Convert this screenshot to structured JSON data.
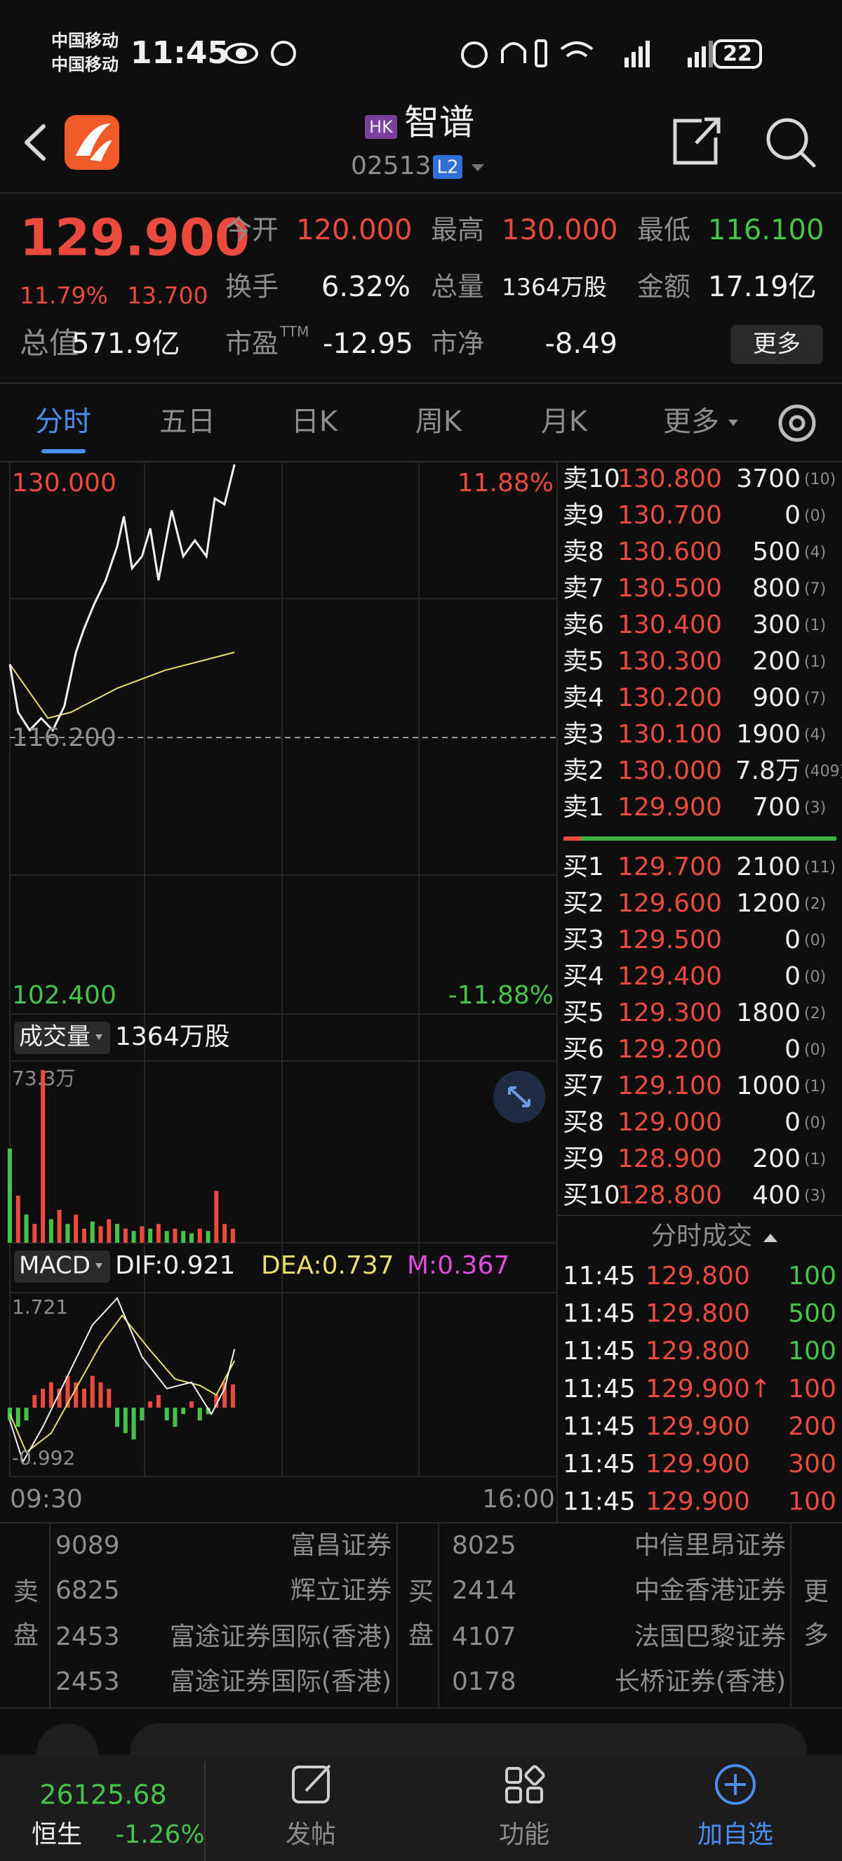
{
  "status_bar": {
    "carrier1": "中国移动",
    "carrier2": "中国移动",
    "time": "11:45",
    "battery": "22"
  },
  "header": {
    "market": "HK",
    "name": "智谱",
    "code": "02513",
    "level": "L2"
  },
  "quote": {
    "price": "129.900",
    "change_pct": "11.79%",
    "change": "13.700",
    "stats": [
      {
        "label": "今开",
        "value": "120.000"
      },
      {
        "label": "最高",
        "value": "130.000"
      },
      {
        "label": "最低",
        "value": "116.100"
      },
      {
        "label": "换手",
        "value": "6.32%"
      },
      {
        "label": "总量",
        "value": "1364万股"
      },
      {
        "label": "金额",
        "value": "17.19亿"
      },
      {
        "label": "总值",
        "value": "571.9亿"
      },
      {
        "label": "市盈",
        "sup": "TTM",
        "value": "-12.95"
      },
      {
        "label": "市净",
        "value": "-8.49"
      }
    ],
    "more": "更多"
  },
  "tabs": [
    "分时",
    "五日",
    "日K",
    "周K",
    "月K",
    "更多"
  ],
  "intraday": {
    "top_label": "130.000",
    "top_pct": "11.88%",
    "mid_label": "116.200",
    "bottom_label": "102.400",
    "bottom_pct": "-11.88%",
    "xlim": [
      0,
      330
    ],
    "ylim": [
      102.4,
      130
    ],
    "x": [
      0,
      5,
      12,
      19,
      26,
      33,
      40,
      45,
      51,
      58,
      65,
      69,
      74,
      80,
      85,
      90,
      98,
      105,
      112,
      119,
      124,
      130,
      136
    ],
    "price": [
      119.9,
      117.5,
      116.6,
      117.2,
      116.6,
      117.8,
      120.5,
      121.7,
      122.9,
      124.1,
      125.8,
      127.3,
      124.7,
      125.3,
      126.7,
      124.1,
      127.6,
      125.3,
      126.1,
      125.3,
      128.2,
      127.9,
      129.9
    ],
    "avg_x": [
      0,
      23,
      37,
      65,
      94,
      122,
      136
    ],
    "avg": [
      119.9,
      117.2,
      117.5,
      118.7,
      119.6,
      120.2,
      120.5
    ],
    "times": [
      "09:30",
      "16:00"
    ]
  },
  "volume": {
    "label": "成交量",
    "total": "1364万股",
    "max_label": "73.3万",
    "ylim": [
      0,
      73.3
    ],
    "x": [
      0,
      5,
      10,
      15,
      20,
      25,
      30,
      35,
      40,
      45,
      50,
      55,
      60,
      65,
      70,
      75,
      80,
      85,
      90,
      95,
      100,
      105,
      110,
      115,
      120,
      125,
      130,
      135
    ],
    "values": [
      40,
      20,
      12,
      8,
      73.3,
      10,
      14,
      8,
      12,
      6,
      9,
      7,
      10,
      8,
      6,
      5,
      7,
      6,
      8,
      5,
      6,
      5,
      4,
      6,
      5,
      22,
      8,
      6
    ],
    "colors": [
      "#46c44a",
      "#ec4a3f",
      "#46c44a",
      "#ec4a3f",
      "#ec4a3f",
      "#46c44a",
      "#ec4a3f",
      "#46c44a",
      "#ec4a3f",
      "#ec4a3f",
      "#46c44a",
      "#ec4a3f",
      "#ec4a3f",
      "#46c44a",
      "#ec4a3f",
      "#46c44a",
      "#ec4a3f",
      "#46c44a",
      "#ec4a3f",
      "#46c44a",
      "#ec4a3f",
      "#46c44a",
      "#46c44a",
      "#ec4a3f",
      "#46c44a",
      "#ec4a3f",
      "#ec4a3f",
      "#ec4a3f"
    ]
  },
  "macd": {
    "label": "MACD",
    "dif_label": "DIF:0.921",
    "dea_label": "DEA:0.737",
    "m_label": "M:0.367",
    "max_label": "1.721",
    "min_label": "-0.992",
    "ylim": [
      -0.992,
      1.721
    ],
    "dif_x": [
      0,
      8,
      20,
      35,
      50,
      65,
      80,
      95,
      110,
      122,
      130,
      136
    ],
    "dif": [
      -0.2,
      -0.85,
      -0.3,
      0.5,
      1.3,
      1.72,
      0.8,
      0.3,
      0.4,
      -0.1,
      0.3,
      0.921
    ],
    "dea_x": [
      0,
      10,
      25,
      40,
      55,
      68,
      85,
      100,
      115,
      125,
      136
    ],
    "dea": [
      -0.1,
      -0.7,
      -0.4,
      0.3,
      1.0,
      1.45,
      0.9,
      0.45,
      0.35,
      0.2,
      0.737
    ],
    "m_x": [
      0,
      5,
      10,
      15,
      20,
      25,
      30,
      35,
      40,
      45,
      50,
      55,
      60,
      65,
      70,
      75,
      80,
      85,
      90,
      95,
      100,
      105,
      110,
      115,
      120,
      125,
      130,
      135
    ],
    "m": [
      -0.2,
      -0.3,
      -0.2,
      0.2,
      0.3,
      0.4,
      0.3,
      0.5,
      0.4,
      0.3,
      0.5,
      0.4,
      0.3,
      -0.3,
      -0.4,
      -0.5,
      -0.2,
      0.1,
      0.2,
      -0.2,
      -0.3,
      -0.1,
      0.1,
      -0.2,
      -0.1,
      0.2,
      0.4,
      0.367
    ]
  },
  "order_book": {
    "asks": [
      {
        "label": "卖10",
        "price": "130.800",
        "qty": "3700",
        "count": "(10)"
      },
      {
        "label": "卖9",
        "price": "130.700",
        "qty": "0",
        "count": "(0)"
      },
      {
        "label": "卖8",
        "price": "130.600",
        "qty": "500",
        "count": "(4)"
      },
      {
        "label": "卖7",
        "price": "130.500",
        "qty": "800",
        "count": "(7)"
      },
      {
        "label": "卖6",
        "price": "130.400",
        "qty": "300",
        "count": "(1)"
      },
      {
        "label": "卖5",
        "price": "130.300",
        "qty": "200",
        "count": "(1)"
      },
      {
        "label": "卖4",
        "price": "130.200",
        "qty": "900",
        "count": "(7)"
      },
      {
        "label": "卖3",
        "price": "130.100",
        "qty": "1900",
        "count": "(4)"
      },
      {
        "label": "卖2",
        "price": "130.000",
        "qty": "7.8万",
        "count": "(409)"
      },
      {
        "label": "卖1",
        "price": "129.900",
        "qty": "700",
        "count": "(3)"
      }
    ],
    "bids": [
      {
        "label": "买1",
        "price": "129.700",
        "qty": "2100",
        "count": "(11)"
      },
      {
        "label": "买2",
        "price": "129.600",
        "qty": "1200",
        "count": "(2)"
      },
      {
        "label": "买3",
        "price": "129.500",
        "qty": "0",
        "count": "(0)"
      },
      {
        "label": "买4",
        "price": "129.400",
        "qty": "0",
        "count": "(0)"
      },
      {
        "label": "买5",
        "price": "129.300",
        "qty": "1800",
        "count": "(2)"
      },
      {
        "label": "买6",
        "price": "129.200",
        "qty": "0",
        "count": "(0)"
      },
      {
        "label": "买7",
        "price": "129.100",
        "qty": "1000",
        "count": "(1)"
      },
      {
        "label": "买8",
        "price": "129.000",
        "qty": "0",
        "count": "(0)"
      },
      {
        "label": "买9",
        "price": "128.900",
        "qty": "200",
        "count": "(1)"
      },
      {
        "label": "买10",
        "price": "128.800",
        "qty": "400",
        "count": "(3)"
      }
    ]
  },
  "trades": {
    "title": "分时成交",
    "rows": [
      {
        "time": "11:45",
        "price": "129.800",
        "qty": "100",
        "color": "#46c44a"
      },
      {
        "time": "11:45",
        "price": "129.800",
        "qty": "500",
        "color": "#46c44a"
      },
      {
        "time": "11:45",
        "price": "129.800",
        "qty": "100",
        "color": "#46c44a"
      },
      {
        "time": "11:45",
        "price": "129.900↑",
        "qty": "100",
        "color": "#ec4a3f"
      },
      {
        "time": "11:45",
        "price": "129.900",
        "qty": "200",
        "color": "#ec4a3f"
      },
      {
        "time": "11:45",
        "price": "129.900",
        "qty": "300",
        "color": "#ec4a3f"
      },
      {
        "time": "11:45",
        "price": "129.900",
        "qty": "100",
        "color": "#ec4a3f"
      }
    ]
  },
  "brokers": {
    "sell_label": "卖盘",
    "buy_label": "买盘",
    "more": "更多",
    "sell": [
      {
        "id": "9089",
        "name": "富昌证券"
      },
      {
        "id": "6825",
        "name": "辉立证券"
      },
      {
        "id": "2453",
        "name": "富途证券国际(香港)"
      },
      {
        "id": "2453",
        "name": "富途证券国际(香港)"
      }
    ],
    "buy": [
      {
        "id": "8025",
        "name": "中信里昂证券"
      },
      {
        "id": "2414",
        "name": "中金香港证券"
      },
      {
        "id": "4107",
        "name": "法国巴黎证券"
      },
      {
        "id": "0178",
        "name": "长桥证券(香港)"
      }
    ]
  },
  "bottom_nav": {
    "index_value": "26125.68",
    "index_name": "恒生",
    "index_change": "-1.26%",
    "items": [
      "发帖",
      "功能",
      "加自选"
    ]
  }
}
